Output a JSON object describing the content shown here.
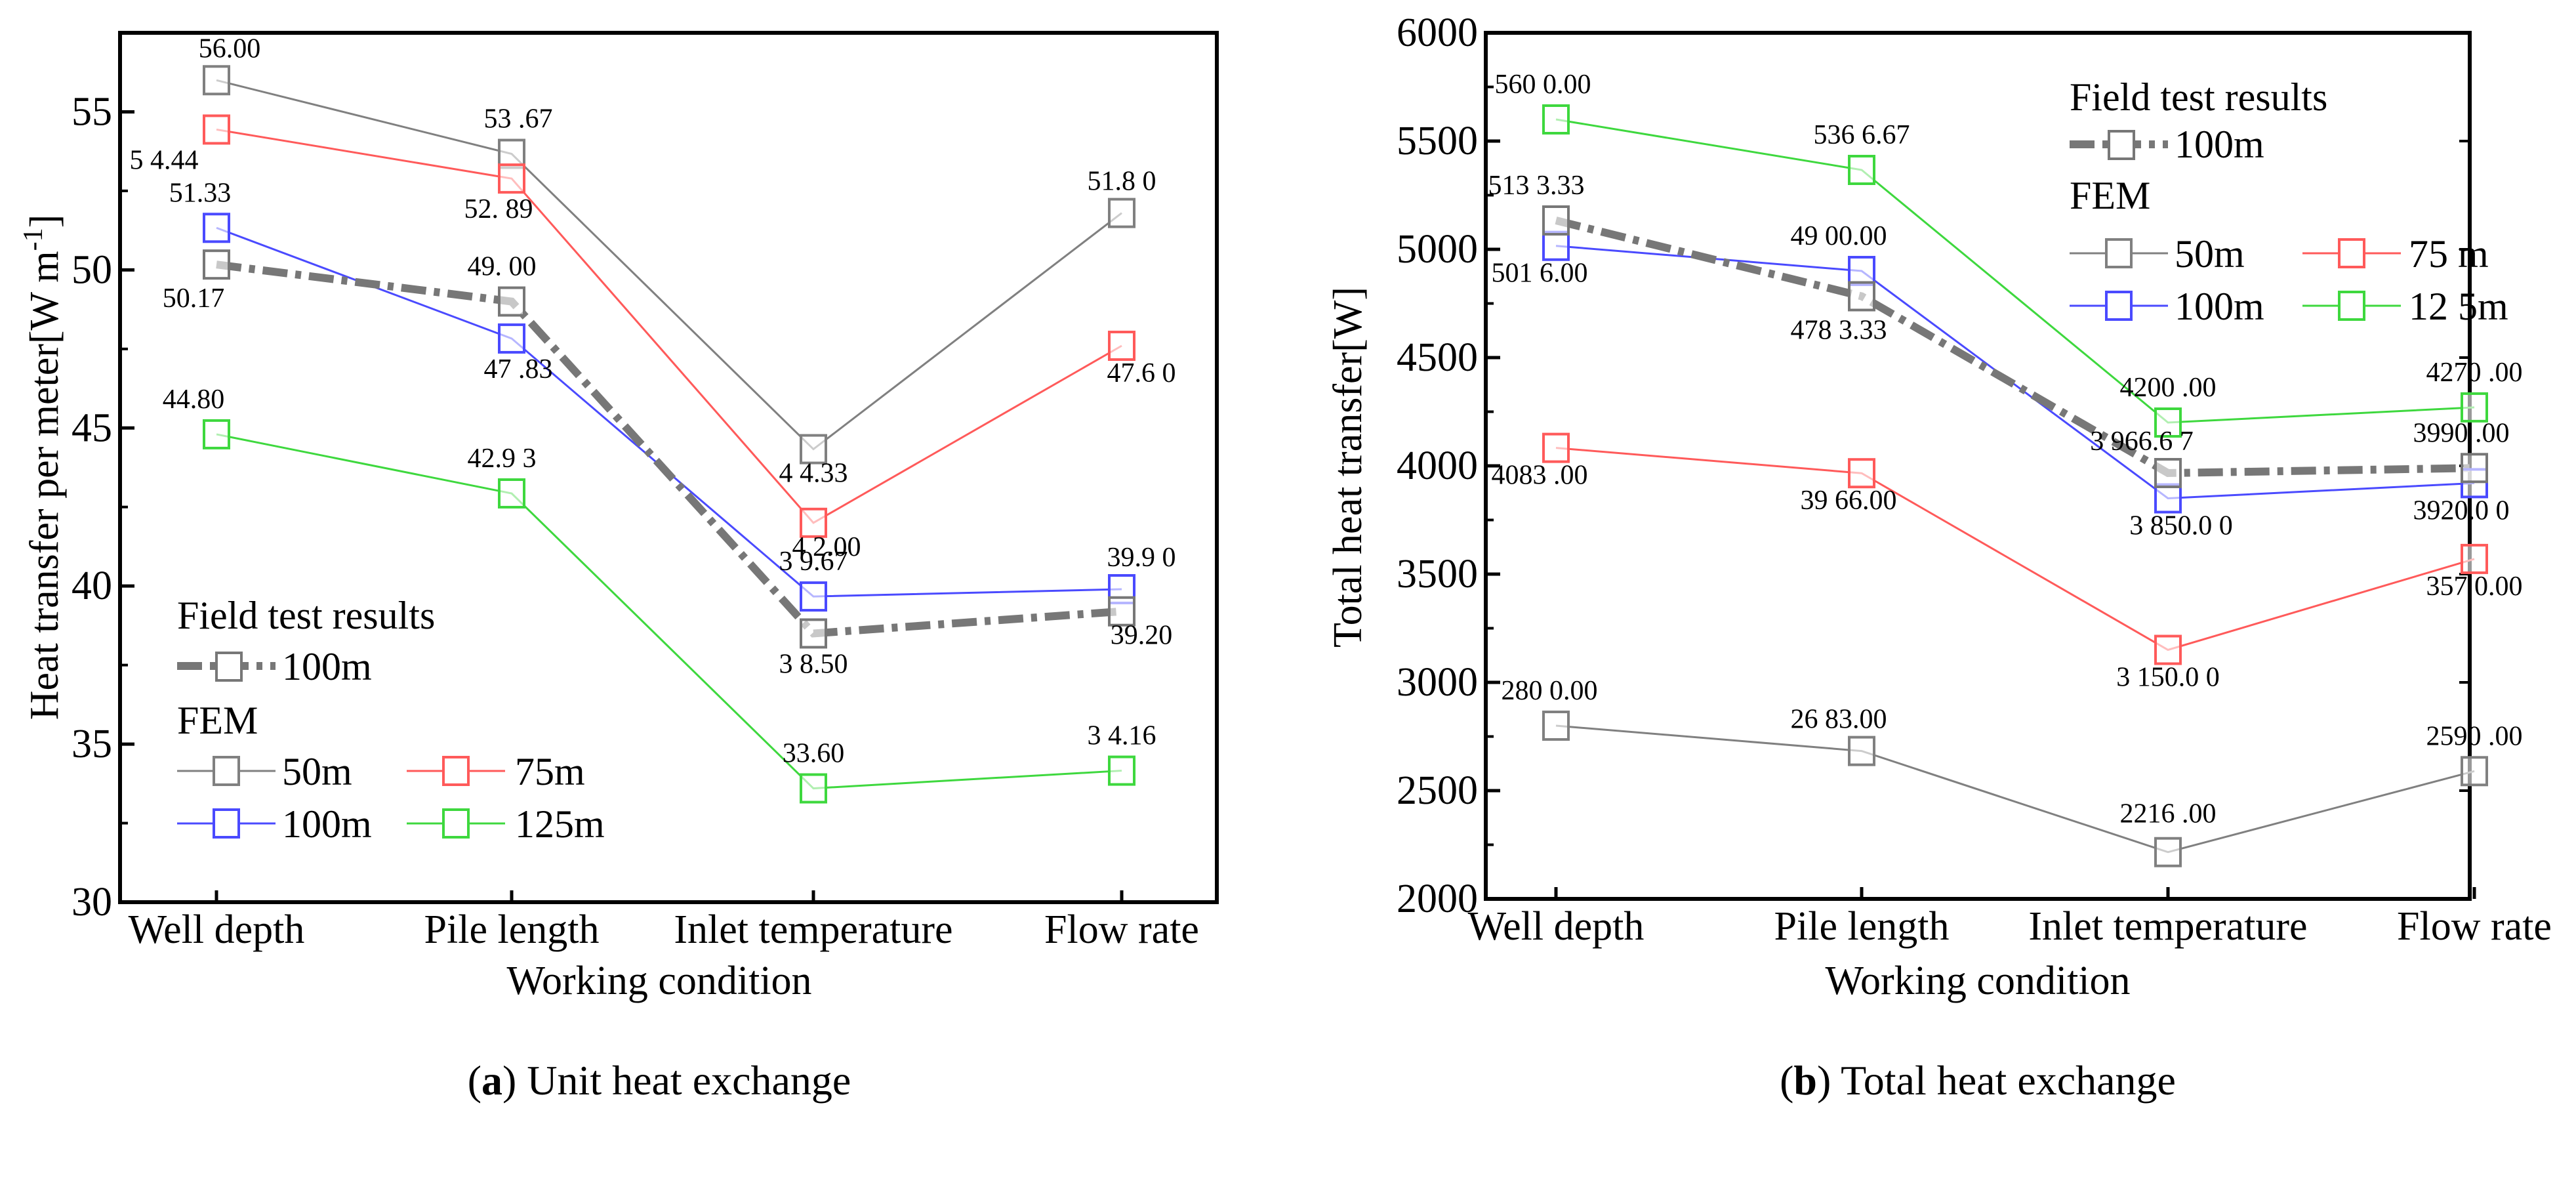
{
  "figure": {
    "caption_a_tag": "a",
    "caption_a_text": ") Unit heat exchange",
    "caption_b_tag": "b",
    "caption_b_text": ") Total heat exchange",
    "caption_open": "("
  },
  "colors": {
    "fem_50": "#808080",
    "fem_75": "#ff5a5a",
    "fem_100": "#4a4aff",
    "fem_125": "#3ed83e",
    "field_100": "#777777"
  },
  "chart_data": [
    {
      "id": "a",
      "type": "line",
      "title": "",
      "categories": [
        "Well depth",
        "Pile length",
        "Inlet temperature",
        "Flow rate"
      ],
      "xlabel": "Working condition",
      "ylabel": "Heat transfer per meter[W m",
      "ylabel_sup": "-1",
      "ylabel_close": "]",
      "ylim": [
        30,
        57.5
      ],
      "yticks": [
        30,
        35,
        40,
        45,
        50,
        55
      ],
      "grid": false,
      "legend": {
        "position": "bottom-left",
        "group1_title": "Field test results",
        "group2_title": "FEM"
      },
      "series": [
        {
          "key": "fem_50",
          "group": "FEM",
          "name": "50m",
          "values": [
            56.0,
            53.67,
            44.33,
            51.8
          ],
          "labels": [
            "56.00",
            "53 .67",
            "4 4.33",
            "51.8 0"
          ]
        },
        {
          "key": "fem_75",
          "group": "FEM",
          "name": "75m",
          "values": [
            54.44,
            52.89,
            42.0,
            47.6
          ],
          "labels": [
            "5 4.44",
            "52. 89",
            "4 2.00",
            "47.6 0"
          ]
        },
        {
          "key": "fem_100",
          "group": "FEM",
          "name": "100m",
          "values": [
            51.33,
            47.83,
            39.67,
            39.9
          ],
          "labels": [
            "51.33",
            "47 .83",
            "3 9.67",
            "39.9 0"
          ]
        },
        {
          "key": "fem_125",
          "group": "FEM",
          "name": "125m",
          "values": [
            44.8,
            42.93,
            33.6,
            34.16
          ],
          "labels": [
            "44.80",
            "42.9 3",
            "33.60",
            "3 4.16"
          ]
        },
        {
          "key": "field_100",
          "group": "Field test results",
          "name": "100m",
          "values": [
            50.17,
            49.0,
            38.5,
            39.2
          ],
          "labels": [
            "50.17",
            "49. 00",
            "3 8.50",
            "39.20"
          ]
        }
      ]
    },
    {
      "id": "b",
      "type": "line",
      "title": "",
      "categories": [
        "Well depth",
        "Pile length",
        "Inlet temperature",
        "Flow rate"
      ],
      "xlabel": "Working condition",
      "ylabel": "Total heat transfer[W]",
      "ylim": [
        2000,
        6000
      ],
      "yticks": [
        2000,
        2500,
        3000,
        3500,
        4000,
        4500,
        5000,
        5500,
        6000
      ],
      "grid": false,
      "legend": {
        "position": "top-right",
        "group1_title": "Field test results",
        "group2_title": "FEM"
      },
      "series": [
        {
          "key": "fem_50",
          "group": "FEM",
          "name": "50m",
          "values": [
            2800.0,
            2683.0,
            2216.0,
            2590.0
          ],
          "labels": [
            "280 0.00",
            "26 83.00",
            "2216 .00",
            "2590 .00"
          ]
        },
        {
          "key": "fem_75",
          "group": "FEM",
          "name": "75 m",
          "values": [
            4083.0,
            3966.0,
            3150.0,
            3570.0
          ],
          "labels": [
            "4083 .00",
            "39 66.00",
            "3 150.0 0",
            "357 0.00"
          ]
        },
        {
          "key": "fem_100",
          "group": "FEM",
          "name": "100m",
          "values": [
            5016.0,
            4900.0,
            3850.0,
            3920.0
          ],
          "labels": [
            "501 6.00",
            "49 00.00",
            "3 850.0 0",
            "3920.0 0"
          ]
        },
        {
          "key": "fem_125",
          "group": "FEM",
          "name": "12 5m",
          "values": [
            5600.0,
            5366.67,
            4200.0,
            4270.0
          ],
          "labels": [
            "560 0.00",
            "536 6.67",
            "4200 .00",
            "4270 .00"
          ]
        },
        {
          "key": "field_100",
          "group": "Field test results",
          "name": "100m",
          "values": [
            5133.33,
            4783.33,
            3966.67,
            3990.0
          ],
          "labels": [
            "513 3.33",
            "478 3.33",
            "3 966.6 7",
            "3990 .00"
          ]
        }
      ]
    }
  ]
}
